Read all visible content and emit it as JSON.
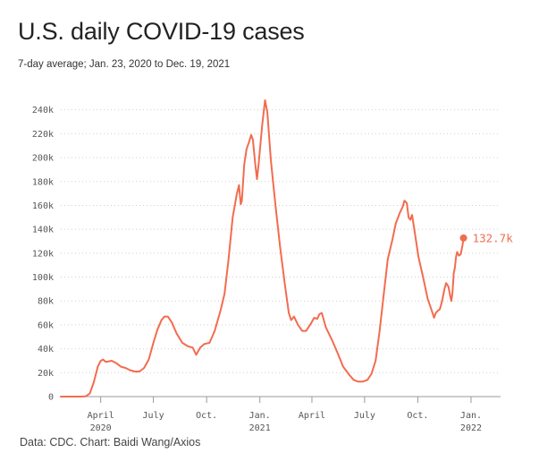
{
  "title": "U.S. daily COVID-19 cases",
  "subtitle": "7-day average; Jan. 23, 2020 to Dec. 19, 2021",
  "source": "Data: CDC. Chart: Baidi Wang/Axios",
  "colors": {
    "line": "#f26c4f",
    "grid": "#cfcfcf",
    "axis": "#999999",
    "text": "#555555"
  },
  "chart_data": {
    "type": "line",
    "title": "U.S. daily COVID-19 cases",
    "subtitle": "7-day average; Jan. 23, 2020 to Dec. 19, 2021",
    "xlabel": "",
    "ylabel": "",
    "ylim": [
      0,
      250000
    ],
    "xlim": [
      "2020-01-23",
      "2021-12-19"
    ],
    "grid": "horizontal dotted",
    "y_ticks": [
      {
        "value": 0,
        "label": "0"
      },
      {
        "value": 20000,
        "label": "20k"
      },
      {
        "value": 40000,
        "label": "40k"
      },
      {
        "value": 60000,
        "label": "60k"
      },
      {
        "value": 80000,
        "label": "80k"
      },
      {
        "value": 100000,
        "label": "100k"
      },
      {
        "value": 120000,
        "label": "120k"
      },
      {
        "value": 140000,
        "label": "140k"
      },
      {
        "value": 160000,
        "label": "160k"
      },
      {
        "value": 180000,
        "label": "180k"
      },
      {
        "value": 200000,
        "label": "200k"
      },
      {
        "value": 220000,
        "label": "220k"
      },
      {
        "value": 240000,
        "label": "240k"
      }
    ],
    "x_ticks": [
      {
        "date": "2020-04-01",
        "label": "April",
        "sublabel": "2020"
      },
      {
        "date": "2020-07-01",
        "label": "July",
        "sublabel": ""
      },
      {
        "date": "2020-10-01",
        "label": "Oct.",
        "sublabel": ""
      },
      {
        "date": "2021-01-01",
        "label": "Jan.",
        "sublabel": "2021"
      },
      {
        "date": "2021-04-01",
        "label": "April",
        "sublabel": ""
      },
      {
        "date": "2021-07-01",
        "label": "July",
        "sublabel": ""
      },
      {
        "date": "2021-10-01",
        "label": "Oct.",
        "sublabel": ""
      },
      {
        "date": "2022-01-01",
        "label": "Jan.",
        "sublabel": "2022"
      }
    ],
    "series": [
      {
        "name": "",
        "color": "#f26c4f",
        "points": [
          [
            "2020-01-23",
            0
          ],
          [
            "2020-02-25",
            0
          ],
          [
            "2020-03-06",
            200
          ],
          [
            "2020-03-13",
            2500
          ],
          [
            "2020-03-20",
            12000
          ],
          [
            "2020-03-27",
            25000
          ],
          [
            "2020-04-01",
            30000
          ],
          [
            "2020-04-05",
            31000
          ],
          [
            "2020-04-10",
            29000
          ],
          [
            "2020-04-15",
            29500
          ],
          [
            "2020-04-20",
            30000
          ],
          [
            "2020-04-28",
            28000
          ],
          [
            "2020-05-06",
            25000
          ],
          [
            "2020-05-14",
            24000
          ],
          [
            "2020-05-22",
            22000
          ],
          [
            "2020-05-30",
            21000
          ],
          [
            "2020-06-07",
            21000
          ],
          [
            "2020-06-15",
            24000
          ],
          [
            "2020-06-23",
            31000
          ],
          [
            "2020-07-01",
            45000
          ],
          [
            "2020-07-08",
            56000
          ],
          [
            "2020-07-15",
            64000
          ],
          [
            "2020-07-20",
            67000
          ],
          [
            "2020-07-26",
            67000
          ],
          [
            "2020-08-02",
            62000
          ],
          [
            "2020-08-10",
            53000
          ],
          [
            "2020-08-20",
            45000
          ],
          [
            "2020-08-30",
            42000
          ],
          [
            "2020-09-07",
            41000
          ],
          [
            "2020-09-13",
            35000
          ],
          [
            "2020-09-20",
            41000
          ],
          [
            "2020-09-27",
            44000
          ],
          [
            "2020-10-06",
            45000
          ],
          [
            "2020-10-15",
            55000
          ],
          [
            "2020-10-25",
            72000
          ],
          [
            "2020-11-01",
            86000
          ],
          [
            "2020-11-08",
            115000
          ],
          [
            "2020-11-15",
            150000
          ],
          [
            "2020-11-22",
            169000
          ],
          [
            "2020-11-26",
            177000
          ],
          [
            "2020-11-29",
            161000
          ],
          [
            "2020-12-01",
            164000
          ],
          [
            "2020-12-05",
            194000
          ],
          [
            "2020-12-09",
            207000
          ],
          [
            "2020-12-14",
            214000
          ],
          [
            "2020-12-17",
            219000
          ],
          [
            "2020-12-20",
            215000
          ],
          [
            "2020-12-24",
            195000
          ],
          [
            "2020-12-27",
            182000
          ],
          [
            "2020-12-30",
            195000
          ],
          [
            "2021-01-05",
            227000
          ],
          [
            "2021-01-10",
            248000
          ],
          [
            "2021-01-14",
            238000
          ],
          [
            "2021-01-20",
            198000
          ],
          [
            "2021-01-28",
            160000
          ],
          [
            "2021-02-05",
            125000
          ],
          [
            "2021-02-13",
            95000
          ],
          [
            "2021-02-20",
            70000
          ],
          [
            "2021-02-24",
            64000
          ],
          [
            "2021-03-01",
            67000
          ],
          [
            "2021-03-08",
            60000
          ],
          [
            "2021-03-15",
            55000
          ],
          [
            "2021-03-22",
            55000
          ],
          [
            "2021-03-30",
            61000
          ],
          [
            "2021-04-05",
            66000
          ],
          [
            "2021-04-10",
            65000
          ],
          [
            "2021-04-14",
            69000
          ],
          [
            "2021-04-18",
            70000
          ],
          [
            "2021-04-25",
            58000
          ],
          [
            "2021-05-05",
            48000
          ],
          [
            "2021-05-15",
            37000
          ],
          [
            "2021-05-25",
            25000
          ],
          [
            "2021-06-05",
            18000
          ],
          [
            "2021-06-12",
            14000
          ],
          [
            "2021-06-20",
            12500
          ],
          [
            "2021-06-28",
            12500
          ],
          [
            "2021-07-06",
            14000
          ],
          [
            "2021-07-13",
            19000
          ],
          [
            "2021-07-20",
            30000
          ],
          [
            "2021-07-27",
            55000
          ],
          [
            "2021-08-03",
            85000
          ],
          [
            "2021-08-10",
            115000
          ],
          [
            "2021-08-18",
            131000
          ],
          [
            "2021-08-24",
            145000
          ],
          [
            "2021-08-31",
            154000
          ],
          [
            "2021-09-05",
            159000
          ],
          [
            "2021-09-08",
            164000
          ],
          [
            "2021-09-12",
            162000
          ],
          [
            "2021-09-15",
            150000
          ],
          [
            "2021-09-18",
            148000
          ],
          [
            "2021-09-21",
            152000
          ],
          [
            "2021-09-25",
            140000
          ],
          [
            "2021-10-02",
            117000
          ],
          [
            "2021-10-10",
            100000
          ],
          [
            "2021-10-18",
            82000
          ],
          [
            "2021-10-25",
            72000
          ],
          [
            "2021-10-29",
            66000
          ],
          [
            "2021-11-01",
            70000
          ],
          [
            "2021-11-05",
            72000
          ],
          [
            "2021-11-08",
            73000
          ],
          [
            "2021-11-12",
            80000
          ],
          [
            "2021-11-16",
            90000
          ],
          [
            "2021-11-19",
            95000
          ],
          [
            "2021-11-23",
            92000
          ],
          [
            "2021-11-26",
            84000
          ],
          [
            "2021-11-28",
            80000
          ],
          [
            "2021-11-30",
            88000
          ],
          [
            "2021-12-02",
            103000
          ],
          [
            "2021-12-04",
            108000
          ],
          [
            "2021-12-06",
            117000
          ],
          [
            "2021-12-08",
            121000
          ],
          [
            "2021-12-11",
            118000
          ],
          [
            "2021-12-14",
            119000
          ],
          [
            "2021-12-17",
            126000
          ],
          [
            "2021-12-19",
            132700
          ]
        ]
      }
    ],
    "annotations": [
      {
        "date": "2021-12-19",
        "value": 132700,
        "label": "132.7k"
      }
    ]
  }
}
